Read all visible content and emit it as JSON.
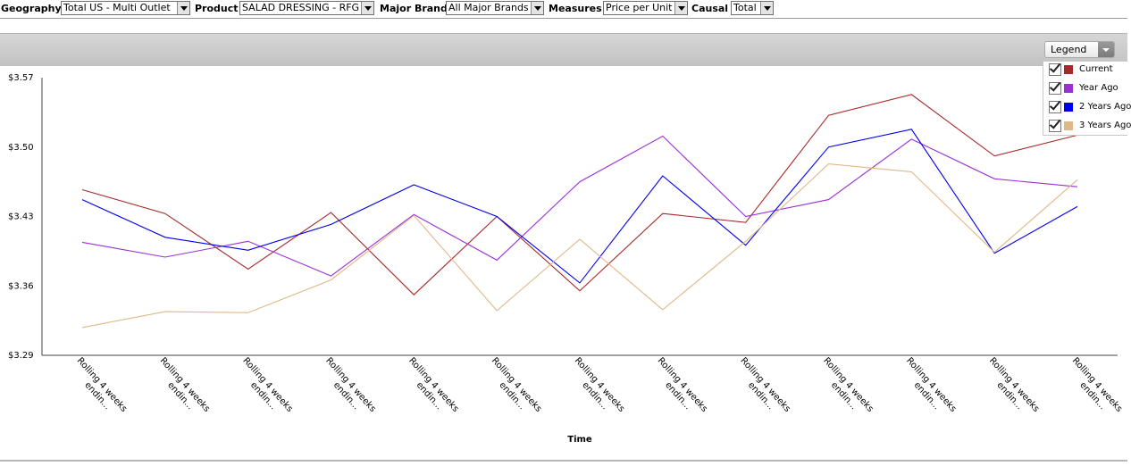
{
  "filters": {
    "geography_label": "Geography",
    "geography_value": "Total US - Multi Outlet",
    "product_label": "Product",
    "product_value": "SALAD DRESSING - RFG",
    "brand_label": "Major Brand",
    "brand_value": "All Major Brands",
    "measures_label": "Measures",
    "measures_value": "Price per Unit",
    "causal_label": "Causal",
    "causal_value": "Total"
  },
  "legend": {
    "dropdown_label": "Legend"
  },
  "chart_data": {
    "type": "line",
    "xlabel": "Time",
    "ylabel": "",
    "ylim": [
      3.29,
      3.57
    ],
    "yticks": [
      "$3.57",
      "$3.50",
      "$3.43",
      "$3.36",
      "$3.29"
    ],
    "ytick_values": [
      3.57,
      3.5,
      3.43,
      3.36,
      3.29
    ],
    "category_line1": "Rolling 4 weeks",
    "category_line2": "endin...",
    "categories": [
      "Rolling 4 weeks endin...",
      "Rolling 4 weeks endin...",
      "Rolling 4 weeks endin...",
      "Rolling 4 weeks endin...",
      "Rolling 4 weeks endin...",
      "Rolling 4 weeks endin...",
      "Rolling 4 weeks endin...",
      "Rolling 4 weeks endin...",
      "Rolling 4 weeks endin...",
      "Rolling 4 weeks endin...",
      "Rolling 4 weeks endin...",
      "Rolling 4 weeks endin...",
      "Rolling 4 weeks endin..."
    ],
    "series": [
      {
        "name": "Current",
        "color": "#a52a2a",
        "values": [
          3.457,
          3.433,
          3.377,
          3.434,
          3.351,
          3.43,
          3.355,
          3.433,
          3.424,
          3.532,
          3.553,
          3.491,
          3.512
        ]
      },
      {
        "name": "Year Ago",
        "color": "#9a2fd6",
        "values": [
          3.404,
          3.389,
          3.405,
          3.37,
          3.432,
          3.386,
          3.465,
          3.511,
          3.43,
          3.447,
          3.508,
          3.468,
          3.46
        ]
      },
      {
        "name": "2 Years Ago",
        "color": "#0000ee",
        "values": [
          3.447,
          3.409,
          3.396,
          3.422,
          3.462,
          3.43,
          3.363,
          3.471,
          3.401,
          3.5,
          3.518,
          3.393,
          3.44
        ]
      },
      {
        "name": "3 Years Ago",
        "color": "#deb887",
        "values": [
          3.318,
          3.334,
          3.333,
          3.366,
          3.431,
          3.335,
          3.407,
          3.336,
          3.405,
          3.483,
          3.475,
          3.394,
          3.467
        ]
      }
    ]
  }
}
